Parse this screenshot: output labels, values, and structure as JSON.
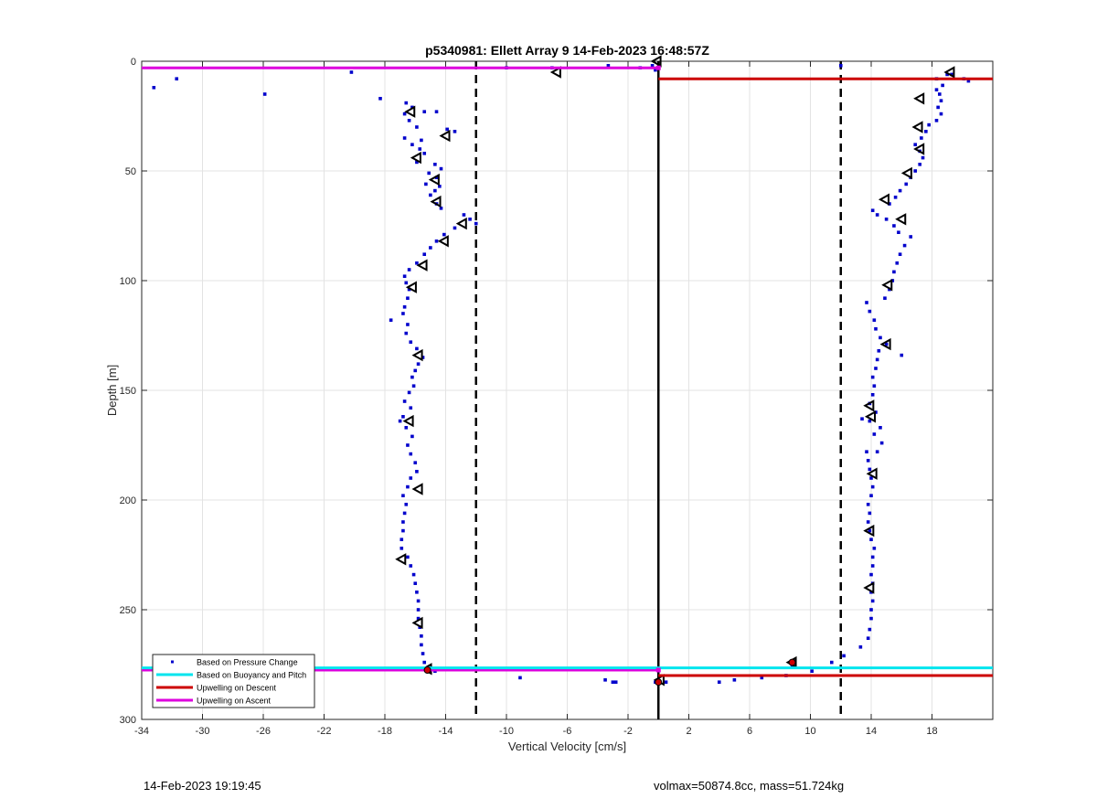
{
  "chart_data": {
    "type": "scatter",
    "title": "p5340981: Ellett Array 9 14-Feb-2023 16:48:57Z",
    "xlabel": "Vertical Velocity [cm/s]",
    "ylabel": "Depth [m]",
    "xlim": [
      -34,
      22
    ],
    "ylim": [
      0,
      300
    ],
    "y_reversed": true,
    "grid": true,
    "legend_position": "bottom-left",
    "x_ticks": [
      "-34",
      "-30",
      "-26",
      "-22",
      "-18",
      "-14",
      "-10",
      "-6",
      "-2",
      "2",
      "6",
      "10",
      "14",
      "18"
    ],
    "x_tick_values": [
      -34,
      -30,
      -26,
      -22,
      -18,
      -14,
      -10,
      -6,
      -2,
      2,
      6,
      10,
      14,
      18
    ],
    "y_ticks": [
      "0",
      "50",
      "100",
      "150",
      "200",
      "250",
      "300"
    ],
    "y_tick_values": [
      0,
      50,
      100,
      150,
      200,
      250,
      300
    ],
    "colors": {
      "pressure": "#0000cc",
      "buoyancy": "#00e5ee",
      "descent": "#cc0000",
      "ascent": "#dd00dd",
      "reference": "#000000",
      "marker": "#000000"
    },
    "legend": [
      {
        "label": "Based on Pressure Change",
        "style": "dot",
        "color": "#0000cc"
      },
      {
        "label": "Based on Buoyancy and Pitch",
        "style": "line",
        "color": "#00e5ee"
      },
      {
        "label": "Upwelling on Descent",
        "style": "line",
        "color": "#cc0000"
      },
      {
        "label": "Upwelling on Ascent",
        "style": "line",
        "color": "#dd00dd"
      }
    ],
    "reference_lines": [
      {
        "x": 0,
        "style": "solid"
      },
      {
        "x": -12,
        "style": "dashed"
      },
      {
        "x": 12,
        "style": "dashed"
      }
    ],
    "upwelling_lines": [
      {
        "series": "ascent",
        "y": 3,
        "x0": -34,
        "x1": 0
      },
      {
        "series": "descent",
        "y": 8,
        "x0": 0,
        "x1": 22
      },
      {
        "series": "ascent",
        "y": 277.5,
        "x0": -34,
        "x1": 0
      },
      {
        "series": "descent",
        "y": 280,
        "x0": 0,
        "x1": 22
      },
      {
        "series": "buoyancy",
        "y": 276.5,
        "x0": -34,
        "x1": 22
      }
    ],
    "series": [
      {
        "name": "Based on Pressure Change",
        "points": [
          [
            -33.2,
            12
          ],
          [
            -31.7,
            8
          ],
          [
            -25.9,
            15
          ],
          [
            -20.2,
            5
          ],
          [
            -18.3,
            17
          ],
          [
            -10,
            3
          ],
          [
            -7,
            3
          ],
          [
            -3.3,
            2
          ],
          [
            -1.2,
            3
          ],
          [
            -0.4,
            2
          ],
          [
            -0.2,
            4
          ],
          [
            -16.6,
            19
          ],
          [
            -16.2,
            21
          ],
          [
            -16.7,
            24
          ],
          [
            -15.4,
            23
          ],
          [
            -14.6,
            23
          ],
          [
            -16.4,
            27
          ],
          [
            -15.9,
            30
          ],
          [
            -13.9,
            31
          ],
          [
            -13.4,
            32
          ],
          [
            -16.7,
            35
          ],
          [
            -15.6,
            36
          ],
          [
            -16.2,
            38
          ],
          [
            -15.7,
            40
          ],
          [
            -15.4,
            42
          ],
          [
            -15.9,
            46
          ],
          [
            -14.7,
            47
          ],
          [
            -14.3,
            49
          ],
          [
            -15.1,
            51
          ],
          [
            -14.6,
            53
          ],
          [
            -15.3,
            56
          ],
          [
            -14.4,
            57
          ],
          [
            -14.7,
            59
          ],
          [
            -15.0,
            61
          ],
          [
            -14.6,
            65
          ],
          [
            -14.3,
            67
          ],
          [
            -12.8,
            70
          ],
          [
            -12.4,
            72
          ],
          [
            -12.0,
            74
          ],
          [
            -13.4,
            76
          ],
          [
            -14.1,
            79
          ],
          [
            -14.6,
            82
          ],
          [
            -15.0,
            85
          ],
          [
            -15.4,
            88
          ],
          [
            -15.9,
            92
          ],
          [
            -16.4,
            95
          ],
          [
            -16.7,
            98
          ],
          [
            -16.6,
            101
          ],
          [
            -16.4,
            104
          ],
          [
            -16.5,
            108
          ],
          [
            -16.7,
            112
          ],
          [
            -16.8,
            115
          ],
          [
            -17.6,
            118
          ],
          [
            -16.5,
            120
          ],
          [
            -16.6,
            124
          ],
          [
            -16.3,
            128
          ],
          [
            -15.9,
            131
          ],
          [
            -15.5,
            135
          ],
          [
            -15.8,
            138
          ],
          [
            -16.0,
            141
          ],
          [
            -16.2,
            144
          ],
          [
            -16.1,
            148
          ],
          [
            -16.4,
            151
          ],
          [
            -16.7,
            155
          ],
          [
            -16.3,
            158
          ],
          [
            -16.8,
            162
          ],
          [
            -17.0,
            164
          ],
          [
            -16.6,
            167
          ],
          [
            -16.2,
            171
          ],
          [
            -16.5,
            175
          ],
          [
            -16.3,
            179
          ],
          [
            -16.0,
            183
          ],
          [
            -15.9,
            187
          ],
          [
            -16.3,
            190
          ],
          [
            -16.5,
            194
          ],
          [
            -16.8,
            198
          ],
          [
            -16.6,
            202
          ],
          [
            -16.7,
            206
          ],
          [
            -16.8,
            210
          ],
          [
            -16.8,
            214
          ],
          [
            -16.9,
            218
          ],
          [
            -16.9,
            222
          ],
          [
            -16.5,
            226
          ],
          [
            -16.3,
            230
          ],
          [
            -16.1,
            234
          ],
          [
            -16.0,
            238
          ],
          [
            -15.9,
            242
          ],
          [
            -15.8,
            246
          ],
          [
            -15.8,
            250
          ],
          [
            -15.8,
            254
          ],
          [
            -15.7,
            258
          ],
          [
            -15.6,
            262
          ],
          [
            -15.6,
            266
          ],
          [
            -15.5,
            270
          ],
          [
            -15.4,
            274
          ],
          [
            -15.4,
            277
          ],
          [
            -14.7,
            278
          ],
          [
            -9.1,
            281
          ],
          [
            -3.5,
            282
          ],
          [
            -3.0,
            283
          ],
          [
            -2.8,
            283
          ],
          [
            -0.2,
            283
          ],
          [
            0.5,
            283
          ],
          [
            4.0,
            283
          ],
          [
            5.0,
            282
          ],
          [
            6.8,
            281
          ],
          [
            8.4,
            280
          ],
          [
            8.8,
            276
          ],
          [
            10.1,
            278
          ],
          [
            11.4,
            274
          ],
          [
            12.2,
            271
          ],
          [
            13.3,
            267
          ],
          [
            13.8,
            263
          ],
          [
            13.9,
            259
          ],
          [
            14.0,
            254
          ],
          [
            14.0,
            250
          ],
          [
            14.1,
            246
          ],
          [
            14.0,
            242
          ],
          [
            14.1,
            238
          ],
          [
            14.0,
            234
          ],
          [
            14.1,
            230
          ],
          [
            14.1,
            226
          ],
          [
            14.2,
            222
          ],
          [
            14.0,
            218
          ],
          [
            13.9,
            214
          ],
          [
            13.8,
            210
          ],
          [
            13.9,
            206
          ],
          [
            13.8,
            202
          ],
          [
            14.0,
            198
          ],
          [
            14.1,
            194
          ],
          [
            14.0,
            190
          ],
          [
            13.9,
            186
          ],
          [
            13.8,
            182
          ],
          [
            13.7,
            178
          ],
          [
            14.4,
            178
          ],
          [
            14.7,
            174
          ],
          [
            14.2,
            170
          ],
          [
            14.6,
            167
          ],
          [
            13.9,
            164
          ],
          [
            13.4,
            163
          ],
          [
            14.3,
            160
          ],
          [
            13.9,
            156
          ],
          [
            14.1,
            152
          ],
          [
            14.2,
            148
          ],
          [
            14.1,
            144
          ],
          [
            14.3,
            140
          ],
          [
            14.4,
            136
          ],
          [
            14.5,
            132
          ],
          [
            15.0,
            129
          ],
          [
            16.0,
            134
          ],
          [
            14.6,
            126
          ],
          [
            14.3,
            122
          ],
          [
            14.2,
            118
          ],
          [
            13.9,
            114
          ],
          [
            13.7,
            110
          ],
          [
            14.9,
            108
          ],
          [
            15.2,
            104
          ],
          [
            15.4,
            100
          ],
          [
            15.5,
            96
          ],
          [
            15.7,
            92
          ],
          [
            15.9,
            88
          ],
          [
            16.2,
            84
          ],
          [
            16.6,
            80
          ],
          [
            15.8,
            78
          ],
          [
            15.5,
            75
          ],
          [
            15.0,
            72
          ],
          [
            14.4,
            70
          ],
          [
            14.1,
            68
          ],
          [
            15.2,
            65
          ],
          [
            15.6,
            62
          ],
          [
            15.9,
            59
          ],
          [
            16.3,
            56
          ],
          [
            16.6,
            53
          ],
          [
            16.9,
            50
          ],
          [
            17.2,
            47
          ],
          [
            17.4,
            44
          ],
          [
            17.2,
            41
          ],
          [
            16.9,
            38
          ],
          [
            17.3,
            35
          ],
          [
            17.6,
            32
          ],
          [
            17.8,
            29
          ],
          [
            18.3,
            27
          ],
          [
            18.6,
            24
          ],
          [
            18.4,
            21
          ],
          [
            18.6,
            18
          ],
          [
            18.5,
            15
          ],
          [
            18.3,
            13
          ],
          [
            18.7,
            11
          ],
          [
            18.3,
            8
          ],
          [
            19.0,
            6
          ],
          [
            20.1,
            8
          ],
          [
            20.4,
            9
          ],
          [
            19.3,
            6
          ],
          [
            12.0,
            2
          ]
        ]
      },
      {
        "name": "",
        "points": [
          [
            -0.1,
            0
          ],
          [
            -6.7,
            5
          ],
          [
            -16.3,
            23
          ],
          [
            -14.0,
            34
          ],
          [
            -15.9,
            44
          ],
          [
            -14.7,
            54
          ],
          [
            -14.6,
            64
          ],
          [
            -12.9,
            74
          ],
          [
            -14.1,
            82
          ],
          [
            -15.5,
            93
          ],
          [
            -16.2,
            103
          ],
          [
            -15.8,
            134
          ],
          [
            -16.4,
            164
          ],
          [
            -15.8,
            195
          ],
          [
            -16.9,
            227
          ],
          [
            -15.8,
            256
          ],
          [
            -15.2,
            277
          ],
          [
            19.2,
            5
          ],
          [
            17.2,
            17
          ],
          [
            17.1,
            30
          ],
          [
            17.2,
            40
          ],
          [
            16.4,
            51
          ],
          [
            14.9,
            63
          ],
          [
            16.0,
            72
          ],
          [
            15.1,
            102
          ],
          [
            15.0,
            129
          ],
          [
            13.9,
            157
          ],
          [
            14.0,
            162
          ],
          [
            14.1,
            188
          ],
          [
            13.9,
            214
          ],
          [
            13.9,
            240
          ],
          [
            8.8,
            274
          ],
          [
            0.1,
            282
          ]
        ]
      }
    ]
  },
  "footer": {
    "left": "14-Feb-2023 19:19:45",
    "right": "volmax=50874.8cc, mass=51.724kg"
  }
}
